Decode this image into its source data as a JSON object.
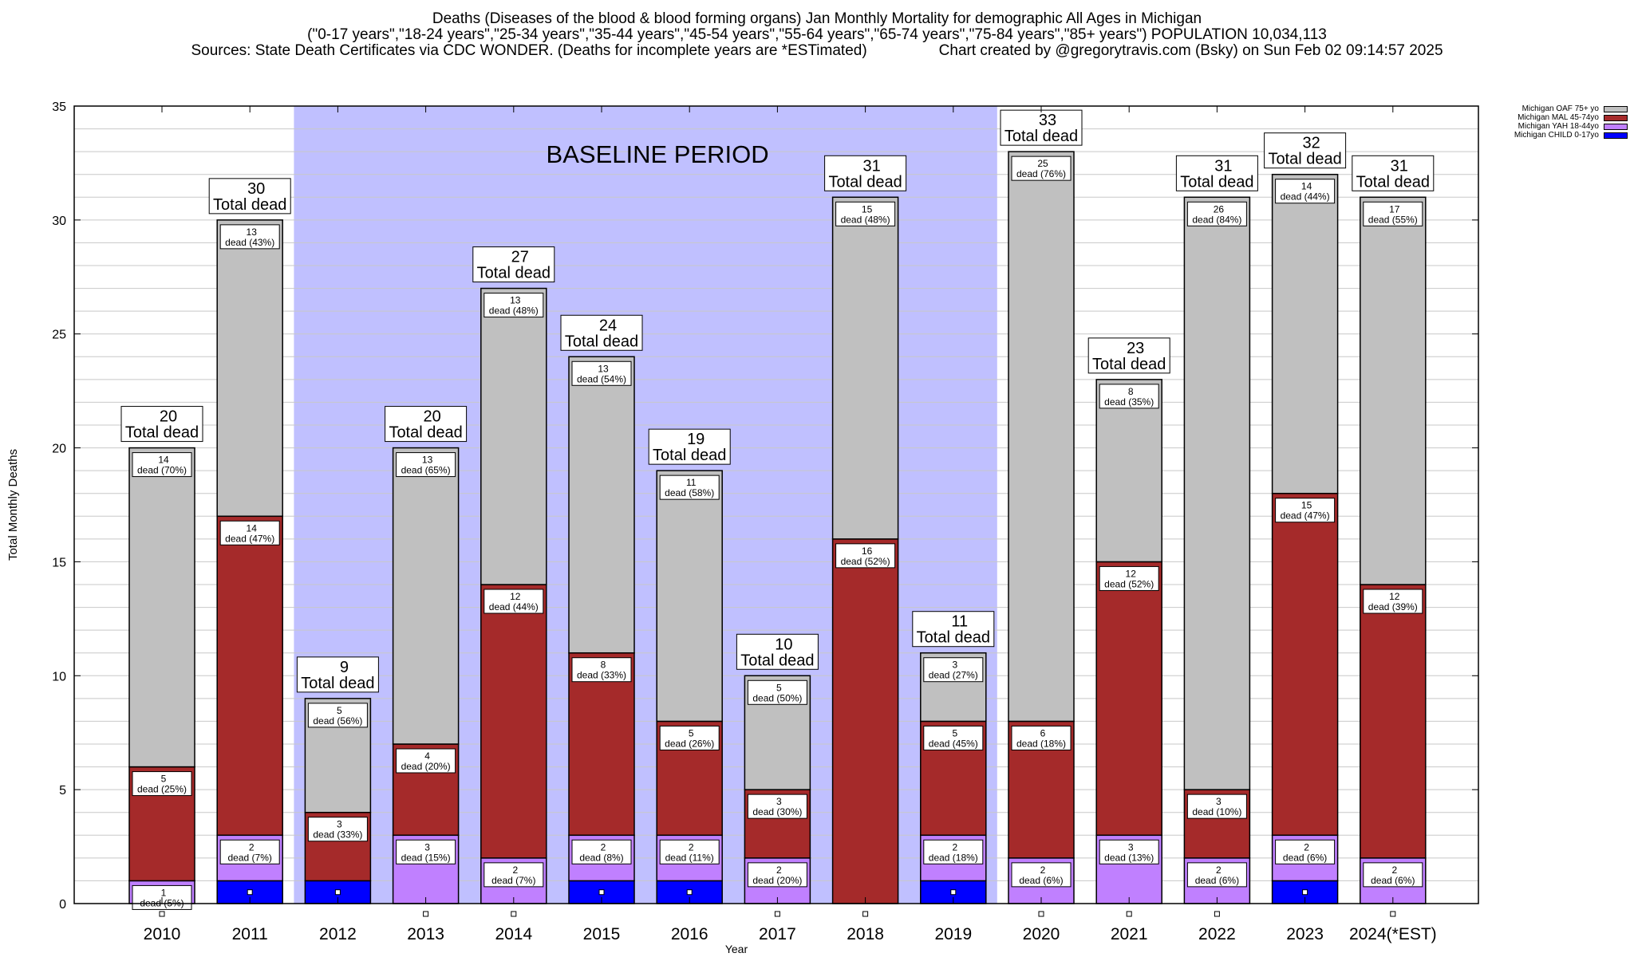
{
  "title": {
    "line1": "Deaths (Diseases of the blood & blood forming organs) Jan Monthly Mortality for demographic All Ages in Michigan",
    "line2": "(\"0-17 years\",\"18-24 years\",\"25-34 years\",\"35-44 years\",\"45-54 years\",\"55-64 years\",\"65-74 years\",\"75-84 years\",\"85+ years\") POPULATION 10,034,113",
    "line3_left": "Sources: State Death Certificates via CDC WONDER. (Deaths for incomplete years are *ESTimated)",
    "line3_right": "Chart created by @gregorytravis.com (Bsky) on Sun Feb 02 09:14:57 2025"
  },
  "legend": [
    {
      "key": "oaf",
      "label": "Michigan OAF 75+ yo",
      "color": "#c0c0c0"
    },
    {
      "key": "mal",
      "label": "Michigan MAL 45-74yo",
      "color": "#a52a2a"
    },
    {
      "key": "yah",
      "label": "Michigan YAH 18-44yo",
      "color": "#c080ff"
    },
    {
      "key": "child",
      "label": "Michigan CHILD 0-17yo",
      "color": "#0000ff"
    }
  ],
  "chart_data": {
    "type": "bar",
    "stacked": true,
    "title": "Deaths (Diseases of the blood & blood forming organs) Jan Monthly Mortality for demographic All Ages in Michigan",
    "xlabel": "Year",
    "ylabel": "Total Monthly Deaths",
    "ylim": [
      0,
      35
    ],
    "yticks": [
      0,
      5,
      10,
      15,
      20,
      25,
      30,
      35
    ],
    "minor_grid_step": 1,
    "grid": true,
    "legend_position": "top-right-outside",
    "annotation": {
      "text": "BASELINE PERIOD",
      "span_categories": [
        "2012",
        "2019"
      ],
      "color": "#c0c0ff"
    },
    "total_label_suffix": "Total dead",
    "segment_label_word": "dead",
    "categories": [
      "2010",
      "2011",
      "2012",
      "2013",
      "2014",
      "2015",
      "2016",
      "2017",
      "2018",
      "2019",
      "2020",
      "2021",
      "2022",
      "2023",
      "2024(*EST)"
    ],
    "series": [
      {
        "key": "child",
        "name": "Michigan CHILD 0-17yo",
        "color": "#0000ff",
        "values": [
          0,
          1,
          1,
          0,
          0,
          1,
          1,
          0,
          0,
          1,
          0,
          0,
          0,
          1,
          0
        ]
      },
      {
        "key": "yah",
        "name": "Michigan YAH 18-44yo",
        "color": "#c080ff",
        "values": [
          1,
          2,
          0,
          3,
          2,
          2,
          2,
          2,
          0,
          2,
          2,
          3,
          2,
          2,
          2
        ],
        "percents": [
          5,
          7,
          null,
          15,
          7,
          8,
          11,
          20,
          null,
          18,
          6,
          13,
          6,
          6,
          6
        ]
      },
      {
        "key": "mal",
        "name": "Michigan MAL 45-74yo",
        "color": "#a52a2a",
        "values": [
          5,
          14,
          3,
          4,
          12,
          8,
          5,
          3,
          16,
          5,
          6,
          12,
          3,
          15,
          12
        ],
        "percents": [
          25,
          47,
          33,
          20,
          44,
          33,
          26,
          30,
          52,
          45,
          18,
          52,
          10,
          47,
          39
        ]
      },
      {
        "key": "oaf",
        "name": "Michigan OAF 75+ yo",
        "color": "#c0c0c0",
        "values": [
          14,
          13,
          5,
          13,
          13,
          13,
          11,
          5,
          15,
          3,
          25,
          8,
          26,
          14,
          17
        ],
        "percents": [
          70,
          43,
          56,
          65,
          48,
          54,
          58,
          50,
          48,
          27,
          76,
          35,
          84,
          44,
          55
        ]
      }
    ],
    "totals": [
      20,
      30,
      9,
      20,
      27,
      24,
      19,
      10,
      31,
      11,
      33,
      23,
      31,
      32,
      31
    ]
  }
}
